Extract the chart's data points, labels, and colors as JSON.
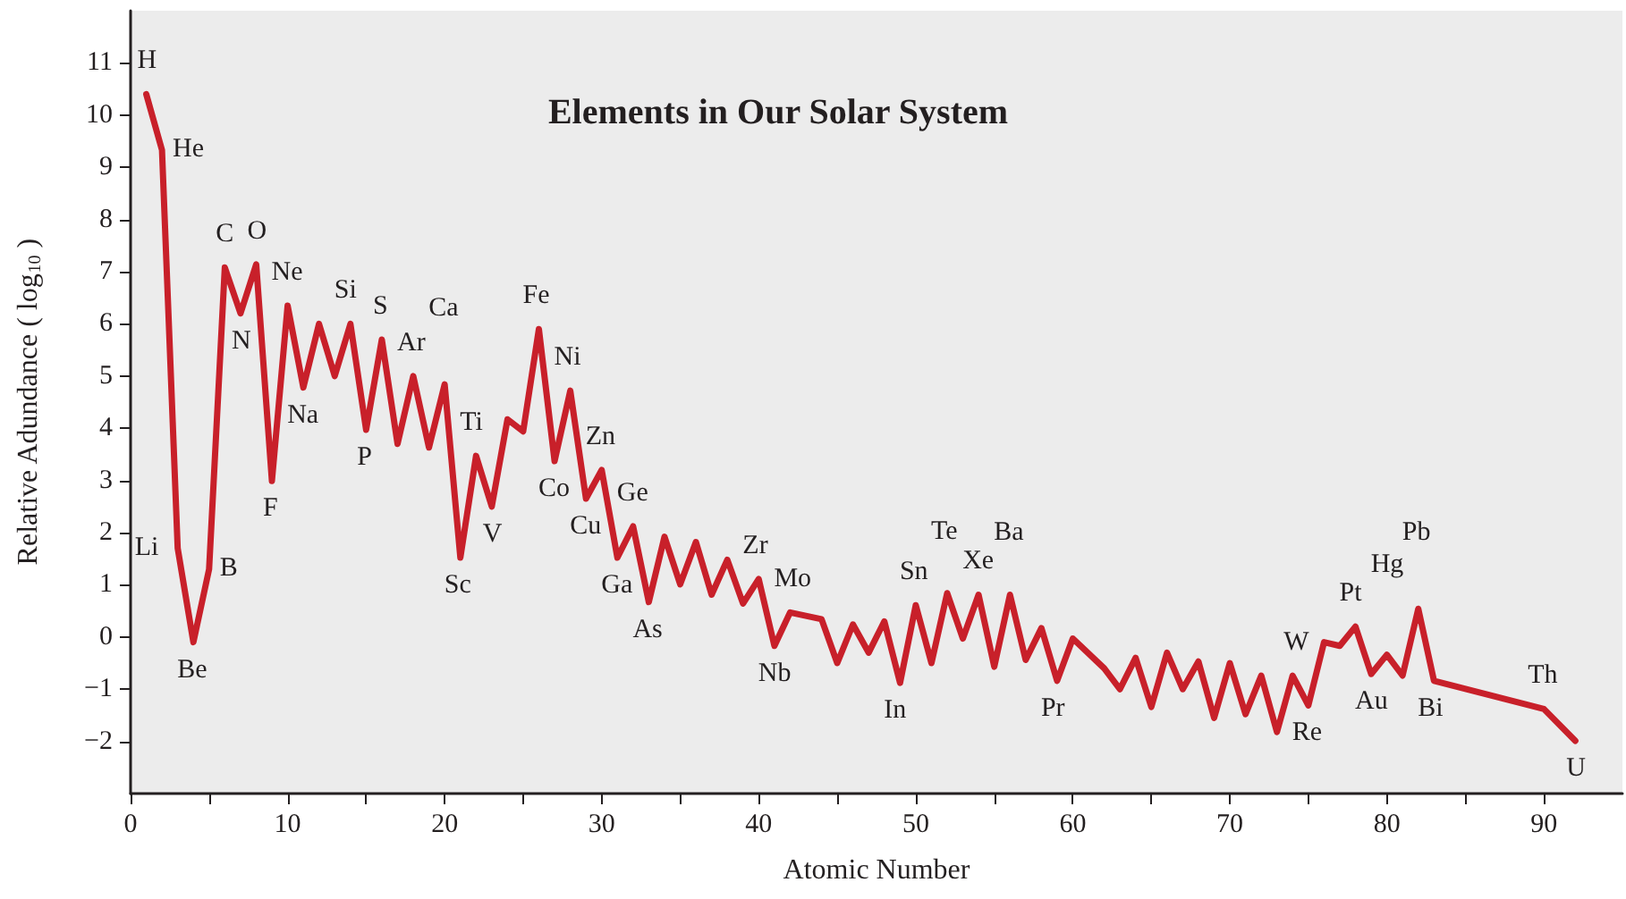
{
  "chart_data": {
    "type": "line",
    "title": "Elements in Our Solar System",
    "xlabel": "Atomic Number",
    "ylabel": "Relative Adundance ( log$_{10}$ )",
    "x": [
      1,
      2,
      3,
      4,
      5,
      6,
      7,
      8,
      9,
      10,
      11,
      12,
      13,
      14,
      15,
      16,
      17,
      18,
      19,
      20,
      21,
      22,
      23,
      24,
      25,
      26,
      27,
      28,
      29,
      30,
      31,
      32,
      33,
      34,
      35,
      36,
      37,
      38,
      39,
      40,
      41,
      42,
      44,
      45,
      46,
      47,
      48,
      49,
      50,
      51,
      52,
      53,
      54,
      55,
      56,
      57,
      58,
      59,
      60,
      62,
      63,
      64,
      65,
      66,
      67,
      68,
      69,
      70,
      71,
      72,
      73,
      74,
      75,
      76,
      77,
      78,
      79,
      80,
      81,
      82,
      83,
      90,
      92
    ],
    "series": [
      {
        "color": "#c8202a",
        "values": [
          10.4,
          9.33,
          1.7,
          -0.1,
          1.3,
          7.08,
          6.2,
          7.14,
          2.99,
          6.35,
          4.78,
          6.0,
          5.0,
          6.0,
          3.97,
          5.7,
          3.7,
          5.0,
          3.63,
          4.84,
          1.52,
          3.47,
          2.5,
          4.17,
          3.94,
          5.9,
          3.37,
          4.72,
          2.65,
          3.2,
          1.52,
          2.12,
          0.67,
          1.92,
          1.01,
          1.82,
          0.81,
          1.48,
          0.64,
          1.11,
          -0.17,
          0.47,
          0.34,
          -0.5,
          0.24,
          -0.3,
          0.3,
          -0.88,
          0.61,
          -0.5,
          0.84,
          -0.03,
          0.81,
          -0.57,
          0.81,
          -0.44,
          0.17,
          -0.84,
          -0.03,
          -0.6,
          -1.0,
          -0.4,
          -1.34,
          -0.3,
          -1.0,
          -0.47,
          -1.55,
          -0.5,
          -1.48,
          -0.74,
          -1.82,
          -0.74,
          -1.31,
          -0.1,
          -0.17,
          0.2,
          -0.71,
          -0.34,
          -0.74,
          0.54,
          -0.84,
          -1.38,
          -1.99
        ]
      }
    ],
    "xlim": [
      0,
      95
    ],
    "ylim": [
      -3,
      12
    ],
    "xticks": [
      0,
      {
        "value": 5,
        "label": null
      },
      10,
      {
        "value": 15,
        "label": null
      },
      20,
      {
        "value": 25,
        "label": null
      },
      30,
      {
        "value": 35,
        "label": null
      },
      40,
      {
        "value": 45,
        "label": null
      },
      50,
      {
        "value": 55,
        "label": null
      },
      60,
      {
        "value": 65,
        "label": null
      },
      70,
      {
        "value": 75,
        "label": null
      },
      80,
      {
        "value": 85,
        "label": null
      },
      90
    ],
    "yticks": [
      -2,
      -1,
      0,
      1,
      2,
      3,
      4,
      5,
      6,
      7,
      8,
      9,
      10,
      11
    ],
    "grid": false,
    "marker": "none",
    "line_style": "solid",
    "annotations": [
      {
        "text": "H",
        "x": 1,
        "y": 10.4
      },
      {
        "text": "He",
        "x": 2,
        "y": 9.33
      },
      {
        "text": "Li",
        "x": 3,
        "y": 1.7
      },
      {
        "text": "Be",
        "x": 4,
        "y": -0.1
      },
      {
        "text": "B",
        "x": 5,
        "y": 1.3
      },
      {
        "text": "C",
        "x": 6,
        "y": 7.08
      },
      {
        "text": "N",
        "x": 7,
        "y": 6.2
      },
      {
        "text": "O",
        "x": 8,
        "y": 7.14
      },
      {
        "text": "F",
        "x": 9,
        "y": 2.99
      },
      {
        "text": "Ne",
        "x": 10,
        "y": 6.35
      },
      {
        "text": "Na",
        "x": 11,
        "y": 4.78
      },
      {
        "text": "Si",
        "x": 14,
        "y": 6.0
      },
      {
        "text": "P",
        "x": 15,
        "y": 3.97
      },
      {
        "text": "S",
        "x": 16,
        "y": 5.7
      },
      {
        "text": "Ar",
        "x": 18,
        "y": 5.0
      },
      {
        "text": "Ca",
        "x": 20,
        "y": 4.84
      },
      {
        "text": "Sc",
        "x": 21,
        "y": 1.52
      },
      {
        "text": "Ti",
        "x": 22,
        "y": 3.47
      },
      {
        "text": "V",
        "x": 23,
        "y": 2.5
      },
      {
        "text": "Fe",
        "x": 26,
        "y": 5.9
      },
      {
        "text": "Co",
        "x": 27,
        "y": 3.37
      },
      {
        "text": "Ni",
        "x": 28,
        "y": 4.72
      },
      {
        "text": "Cu",
        "x": 29,
        "y": 2.65
      },
      {
        "text": "Zn",
        "x": 30,
        "y": 3.2
      },
      {
        "text": "Ga",
        "x": 31,
        "y": 1.52
      },
      {
        "text": "Ge",
        "x": 32,
        "y": 2.12
      },
      {
        "text": "As",
        "x": 33,
        "y": 0.67
      },
      {
        "text": "Zr",
        "x": 40,
        "y": 1.11
      },
      {
        "text": "Nb",
        "x": 41,
        "y": -0.17
      },
      {
        "text": "Mo",
        "x": 42,
        "y": 0.47
      },
      {
        "text": "In",
        "x": 49,
        "y": -0.88
      },
      {
        "text": "Sn",
        "x": 50,
        "y": 0.61
      },
      {
        "text": "Te",
        "x": 52,
        "y": 0.84
      },
      {
        "text": "Xe",
        "x": 54,
        "y": 0.81
      },
      {
        "text": "Ba",
        "x": 56,
        "y": 0.81
      },
      {
        "text": "Pr",
        "x": 59,
        "y": -0.84
      },
      {
        "text": "W",
        "x": 74,
        "y": -0.74
      },
      {
        "text": "Re",
        "x": 75,
        "y": -1.31
      },
      {
        "text": "Pt",
        "x": 78,
        "y": 0.2
      },
      {
        "text": "Au",
        "x": 79,
        "y": -0.71
      },
      {
        "text": "Hg",
        "x": 80,
        "y": -0.34
      },
      {
        "text": "Pb",
        "x": 82,
        "y": 0.54
      },
      {
        "text": "Bi",
        "x": 83,
        "y": -0.84
      },
      {
        "text": "Th",
        "x": 90,
        "y": -1.38
      },
      {
        "text": "U",
        "x": 92,
        "y": -1.99
      }
    ]
  }
}
